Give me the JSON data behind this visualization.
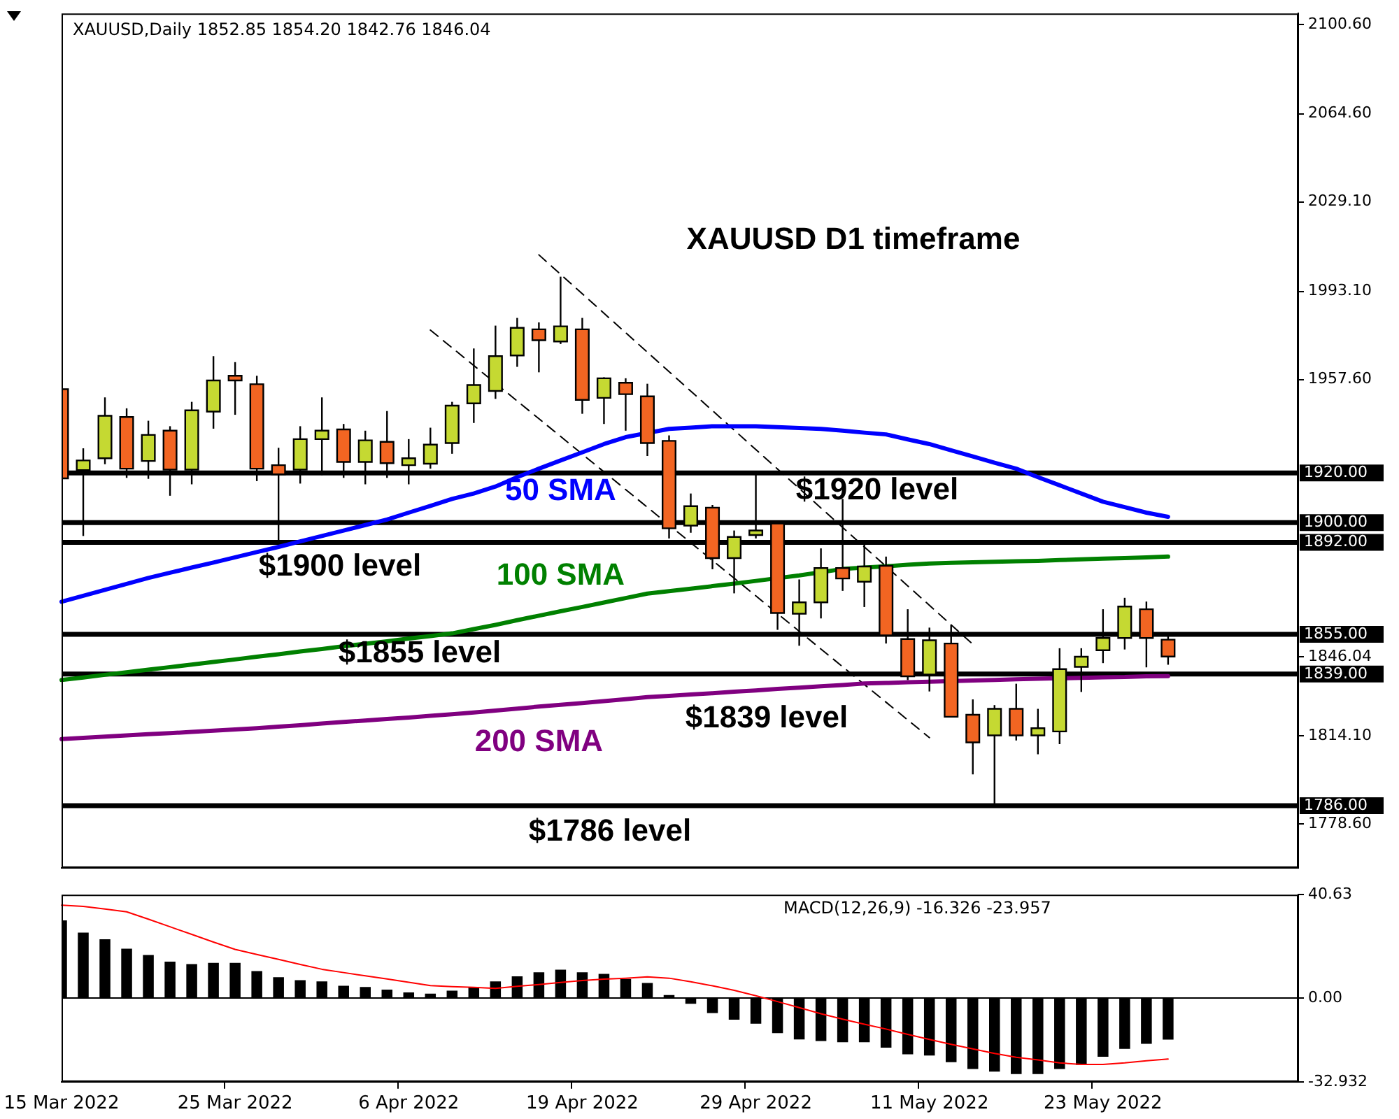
{
  "chart_data": [
    {
      "type": "candlestick",
      "title": "XAUUSD,Daily 1852.85 1854.20 1842.76 1846.04",
      "categories": [
        null,
        null,
        null,
        null,
        null,
        null,
        null,
        null,
        null,
        null,
        null,
        null,
        null,
        null,
        null,
        null,
        null,
        null,
        null,
        null,
        null,
        null,
        null,
        null,
        null,
        null,
        null,
        null,
        null,
        null,
        null,
        null,
        null,
        null,
        null,
        null,
        null,
        null,
        null,
        null,
        null,
        null,
        null,
        null,
        null,
        null,
        null,
        null,
        null,
        null,
        null,
        null,
        null,
        null,
        null,
        null,
        null,
        null
      ],
      "ohlc": [
        [
          1953.7,
          1954.5,
          1907.0,
          1917.8
        ],
        [
          1921.1,
          1929.9,
          1894.6,
          1925.0
        ],
        [
          1925.9,
          1950.4,
          1923.5,
          1943.0
        ],
        [
          1942.5,
          1946.0,
          1918.0,
          1921.7
        ],
        [
          1924.8,
          1941.0,
          1917.6,
          1935.3
        ],
        [
          1937.0,
          1938.8,
          1910.8,
          1921.3
        ],
        [
          1921.3,
          1948.6,
          1915.4,
          1945.2
        ],
        [
          1944.7,
          1967.0,
          1937.8,
          1957.2
        ],
        [
          1959.1,
          1964.6,
          1943.4,
          1957.2
        ],
        [
          1955.7,
          1959.1,
          1916.7,
          1921.7
        ],
        [
          1923.1,
          1930.1,
          1892.8,
          1919.4
        ],
        [
          1921.3,
          1938.8,
          1915.7,
          1933.6
        ],
        [
          1933.6,
          1950.4,
          1919.1,
          1937.0
        ],
        [
          1937.5,
          1939.7,
          1918.0,
          1924.4
        ],
        [
          1924.4,
          1937.0,
          1915.4,
          1933.1
        ],
        [
          1932.5,
          1944.9,
          1918.0,
          1923.9
        ],
        [
          1923.1,
          1933.6,
          1915.4,
          1925.9
        ],
        [
          1923.7,
          1938.2,
          1921.7,
          1931.4
        ],
        [
          1932.0,
          1948.6,
          1927.7,
          1947.1
        ],
        [
          1948.0,
          1970.1,
          1940.1,
          1955.4
        ],
        [
          1953.0,
          1979.3,
          1949.8,
          1967.0
        ],
        [
          1967.3,
          1982.4,
          1962.7,
          1978.4
        ],
        [
          1977.8,
          1980.6,
          1960.5,
          1973.4
        ],
        [
          1972.9,
          1999.0,
          1971.9,
          1979.0
        ],
        [
          1977.8,
          1982.4,
          1943.8,
          1949.4
        ],
        [
          1950.2,
          1958.5,
          1939.7,
          1958.1
        ],
        [
          1956.3,
          1958.1,
          1937.0,
          1951.7
        ],
        [
          1950.8,
          1955.9,
          1926.8,
          1932.0
        ],
        [
          1932.9,
          1935.1,
          1893.6,
          1897.7
        ],
        [
          1898.8,
          1911.7,
          1895.9,
          1906.6
        ],
        [
          1906.0,
          1907.1,
          1881.2,
          1885.7
        ],
        [
          1885.7,
          1896.8,
          1871.5,
          1894.2
        ],
        [
          1895.0,
          1919.4,
          1893.6,
          1896.8
        ],
        [
          1899.6,
          1900.5,
          1856.8,
          1863.6
        ],
        [
          1863.3,
          1877.1,
          1850.4,
          1867.9
        ],
        [
          1867.9,
          1889.6,
          1861.4,
          1881.7
        ],
        [
          1881.7,
          1909.5,
          1872.5,
          1877.5
        ],
        [
          1876.2,
          1891.8,
          1866.0,
          1882.3
        ],
        [
          1882.6,
          1886.3,
          1851.3,
          1854.6
        ],
        [
          1853.1,
          1865.1,
          1836.6,
          1838.1
        ],
        [
          1838.8,
          1857.7,
          1832.0,
          1852.6
        ],
        [
          1851.3,
          1858.7,
          1821.5,
          1821.8
        ],
        [
          1822.6,
          1828.8,
          1798.6,
          1811.5
        ],
        [
          1814.3,
          1826.5,
          1786.0,
          1825.0
        ],
        [
          1825.0,
          1835.1,
          1812.3,
          1814.3
        ],
        [
          1814.3,
          1825.0,
          1806.7,
          1817.2
        ],
        [
          1815.9,
          1849.4,
          1810.8,
          1841.0
        ],
        [
          1841.9,
          1849.4,
          1831.8,
          1846.0
        ],
        [
          1848.6,
          1865.1,
          1843.4,
          1853.5
        ],
        [
          1853.5,
          1869.7,
          1848.9,
          1866.2
        ],
        [
          1865.1,
          1868.2,
          1841.7,
          1853.5
        ],
        [
          1852.85,
          1854.2,
          1842.76,
          1846.04
        ],
        null,
        null,
        null,
        null,
        null,
        null
      ],
      "colors": [
        "#f26522",
        "#c5d932",
        "#c5d932",
        "#f26522",
        "#c5d932",
        "#f26522",
        "#c5d932",
        "#c5d932",
        "#f26522",
        "#f26522",
        "#f26522",
        "#c5d932",
        "#c5d932",
        "#f26522",
        "#c5d932",
        "#f26522",
        "#c5d932",
        "#c5d932",
        "#c5d932",
        "#c5d932",
        "#c5d932",
        "#c5d932",
        "#f26522",
        "#c5d932",
        "#f26522",
        "#c5d932",
        "#f26522",
        "#f26522",
        "#f26522",
        "#c5d932",
        "#f26522",
        "#c5d932",
        "#c5d932",
        "#f26522",
        "#c5d932",
        "#c5d932",
        "#f26522",
        "#c5d932",
        "#f26522",
        "#f26522",
        "#c5d932",
        "#f26522",
        "#f26522",
        "#c5d932",
        "#f26522",
        "#c5d932",
        "#c5d932",
        "#c5d932",
        "#c5d932",
        "#c5d932",
        "#f26522",
        "#f26522",
        null,
        null,
        null,
        null,
        null,
        null
      ],
      "series": [
        {
          "type": "line",
          "name": "50 SMA",
          "color": "#0000ff",
          "values": [
            1868.1,
            1870.5,
            1872.9,
            1875.3,
            1877.7,
            1879.8,
            1881.9,
            1883.9,
            1886.0,
            1888.1,
            1890.2,
            1892.4,
            1894.6,
            1896.8,
            1899.0,
            1901.2,
            1904.0,
            1906.7,
            1909.5,
            1911.7,
            1914.5,
            1918.3,
            1921.7,
            1925.0,
            1928.3,
            1931.6,
            1934.4,
            null,
            1937.7,
            1938.2,
            1938.8,
            1938.8,
            1938.8,
            1938.4,
            1938.1,
            1937.7,
            1937.0,
            1936.2,
            1935.5,
            1933.5,
            1931.6,
            1929.1,
            1926.6,
            1924.1,
            1921.7,
            1918.3,
            1915.0,
            1911.7,
            1908.4,
            1906.2,
            1904.0,
            1902.3,
            null,
            null,
            null,
            null,
            null,
            null
          ]
        },
        {
          "type": "line",
          "name": "100 SMA",
          "color": "#008000",
          "values": [
            1836.6,
            1837.6,
            1838.7,
            1839.7,
            1840.8,
            1841.8,
            1842.8,
            1843.9,
            1844.9,
            1846.0,
            1847.0,
            1848.1,
            1849.1,
            1850.2,
            1851.2,
            1852.2,
            1853.3,
            1854.3,
            1855.4,
            1857.1,
            1858.8,
            1860.7,
            1862.5,
            1864.3,
            1866.0,
            1867.8,
            1869.6,
            1871.4,
            1872.4,
            1873.4,
            1874.4,
            1875.4,
            1876.5,
            null,
            1878.7,
            null,
            1881.3,
            1881.9,
            1882.4,
            1883.0,
            1883.5,
            1883.8,
            1884.0,
            1884.2,
            1884.4,
            1884.6,
            1884.9,
            1885.2,
            1885.5,
            1885.7,
            1886.0,
            1886.3,
            null,
            null,
            null,
            null,
            null,
            null
          ]
        },
        {
          "type": "line",
          "name": "200 SMA",
          "color": "#800080",
          "values": [
            1812.8,
            1813.3,
            1813.8,
            1814.3,
            1814.8,
            1815.2,
            1815.7,
            1816.2,
            1816.7,
            1817.2,
            1817.8,
            1818.4,
            1819.1,
            1819.7,
            1820.3,
            1820.9,
            1821.5,
            1822.2,
            1822.8,
            1823.5,
            1824.3,
            1825.1,
            1825.9,
            1826.6,
            1827.3,
            1828.1,
            1828.9,
            1829.7,
            1830.2,
            1830.8,
            1831.3,
            1831.9,
            1832.4,
            1833.0,
            1833.5,
            1834.1,
            1834.6,
            1835.2,
            1835.4,
            1835.7,
            1835.9,
            null,
            1836.4,
            1836.6,
            1836.9,
            1837.1,
            null,
            1837.5,
            1837.7,
            1837.8,
            1838.1,
            1838.2,
            null,
            null,
            null,
            null,
            null,
            null
          ]
        },
        {
          "type": "line",
          "color": "#000000",
          "line_style": "dashed",
          "values": [
            null,
            null,
            null,
            null,
            null,
            null,
            null,
            null,
            null,
            null,
            null,
            null,
            null,
            null,
            null,
            null,
            null,
            1977.5,
            null,
            null,
            null,
            null,
            null,
            null,
            null,
            null,
            null,
            null,
            null,
            null,
            null,
            null,
            null,
            null,
            null,
            null,
            null,
            null,
            null,
            null,
            1813.4,
            null,
            null,
            null,
            null,
            null,
            null,
            null,
            null,
            null,
            null,
            null,
            null,
            null,
            null,
            null,
            null,
            null
          ]
        },
        {
          "type": "line",
          "color": "#000000",
          "line_style": "dashed",
          "values": [
            null,
            null,
            null,
            null,
            null,
            null,
            null,
            null,
            null,
            null,
            null,
            null,
            null,
            null,
            null,
            null,
            null,
            null,
            null,
            null,
            null,
            null,
            2007.8,
            null,
            null,
            null,
            null,
            null,
            null,
            null,
            null,
            null,
            null,
            null,
            null,
            null,
            null,
            null,
            null,
            null,
            null,
            null,
            1851.0,
            null,
            null,
            null,
            null,
            null,
            null,
            null,
            null,
            null,
            null,
            null,
            null,
            null,
            null,
            null
          ]
        }
      ],
      "ref_lines": [
        {
          "axis": "y",
          "value": 1920,
          "label": "1920.00",
          "color": "#000000"
        },
        {
          "axis": "y",
          "value": 1900,
          "label": "1900.00",
          "color": "#000000"
        },
        {
          "axis": "y",
          "value": 1892,
          "label": "1892.00",
          "color": "#000000"
        },
        {
          "axis": "y",
          "value": 1855,
          "label": "1855.00",
          "color": "#000000"
        },
        {
          "axis": "y",
          "value": 1839,
          "label": "1839.00",
          "color": "#000000"
        },
        {
          "axis": "y",
          "value": 1786,
          "label": "1786.00",
          "color": "#000000"
        }
      ],
      "annotations": [
        "XAUUSD D1 timeframe",
        {
          "text": "$1920 level",
          "y": 1920
        },
        {
          "text": "$1900 level",
          "y": 1900
        },
        {
          "text": "$1855 level",
          "y": 1855
        },
        {
          "text": "$1839 level",
          "y": 1839
        },
        {
          "text": "$1786 level",
          "y": 1786
        }
      ],
      "ylim": [
        1761,
        2105
      ],
      "yticks": [
        {
          "value": 2100.6,
          "label": "2100.60"
        },
        {
          "value": 2064.6,
          "label": "2064.60"
        },
        {
          "value": 2029.1,
          "label": "2029.10"
        },
        {
          "value": 1993.1,
          "label": "1993.10"
        },
        {
          "value": 1957.6,
          "label": "1957.60"
        },
        {
          "value": 1846.04,
          "label": "1846.04"
        },
        {
          "value": 1814.1,
          "label": "1814.10"
        },
        {
          "value": 1778.6,
          "label": "1778.60"
        }
      ],
      "tick_labels": "y"
    },
    {
      "type": "bar",
      "title": "MACD(12,26,9) -16.326 -23.957",
      "categories": [
        "15 Mar 2022",
        null,
        null,
        null,
        null,
        null,
        null,
        null,
        "25 Mar 2022",
        null,
        null,
        null,
        null,
        null,
        null,
        null,
        "6 Apr 2022",
        null,
        null,
        null,
        null,
        null,
        null,
        null,
        "19 Apr 2022",
        null,
        null,
        null,
        null,
        null,
        null,
        null,
        "29 Apr 2022",
        null,
        null,
        null,
        null,
        null,
        null,
        null,
        "11 May 2022",
        null,
        null,
        null,
        null,
        null,
        null,
        null,
        "23 May 2022",
        null,
        null,
        null,
        null,
        null,
        null,
        null,
        null,
        null
      ],
      "series": [
        {
          "type": "bar",
          "color": "#000000",
          "values": [
            30.5,
            25.7,
            23.1,
            19.4,
            16.9,
            14.3,
            13.3,
            13.8,
            13.8,
            10.6,
            8.2,
            7.0,
            6.5,
            4.8,
            4.3,
            3.3,
            2.2,
            1.7,
            2.9,
            4.3,
            6.5,
            8.5,
            10.1,
            11.1,
            10.1,
            9.5,
            7.5,
            5.9,
            1.2,
            -2.3,
            -5.9,
            -8.5,
            -10.1,
            -13.8,
            -16.3,
            -16.9,
            -17.4,
            -17.4,
            -19.5,
            -22.1,
            -22.6,
            -25.2,
            -27.9,
            -28.9,
            -29.9,
            -29.9,
            -27.9,
            -26.3,
            -23.1,
            -20.0,
            -18.0,
            -16.326,
            null,
            null,
            null,
            null,
            null,
            null
          ]
        },
        {
          "type": "line",
          "color": "#ff0000",
          "values": [
            36.5,
            36.0,
            35.0,
            33.9,
            31.0,
            28.0,
            25.0,
            22.0,
            19.1,
            17.1,
            15.2,
            13.2,
            11.3,
            10.0,
            8.7,
            7.5,
            6.2,
            4.9,
            4.5,
            4.2,
            3.8,
            4.6,
            5.3,
            6.1,
            6.9,
            7.4,
            7.8,
            8.3,
            7.8,
            6.4,
            4.8,
            3.0,
            0.9,
            -1.4,
            -3.8,
            -6.2,
            -8.3,
            -10.3,
            -12.2,
            -14.3,
            -16.3,
            -18.2,
            -20.0,
            -21.8,
            -23.3,
            -24.3,
            -25.5,
            -26.1,
            -26.1,
            -25.5,
            -24.7,
            -23.957,
            null,
            null,
            null,
            null,
            null,
            null
          ]
        }
      ],
      "ref_lines": [
        {
          "axis": "y",
          "value": 0,
          "color": "#000000"
        }
      ],
      "ylim": [
        -32.932,
        40.63
      ],
      "yticks": [
        40.63,
        {
          "value": 0,
          "label": "0.00"
        },
        -32.932
      ]
    }
  ]
}
